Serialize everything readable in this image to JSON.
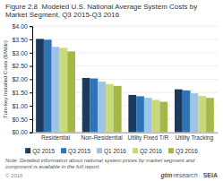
{
  "chart_data": {
    "type": "bar",
    "title": "Figure 2.8  Modeled U.S. National Average System Costs by Market Segment, Q3 2015-Q3 2016",
    "ylabel": "Turn-key Installed Costs ($/Wdc)",
    "categories": [
      "Residential",
      "Non-Residential",
      "Utility Fixed T/R",
      "Utility Tracking"
    ],
    "series": [
      {
        "name": "Q2 2015",
        "color": "#1b3a5e",
        "values": [
          3.52,
          2.05,
          1.41,
          1.62
        ]
      },
      {
        "name": "Q3 2015",
        "color": "#2e75b6",
        "values": [
          3.49,
          2.03,
          1.36,
          1.58
        ]
      },
      {
        "name": "Q1 2016",
        "color": "#9dc3e6",
        "values": [
          3.22,
          1.91,
          1.3,
          1.47
        ]
      },
      {
        "name": "Q2 2016",
        "color": "#c9d87a",
        "values": [
          3.18,
          1.82,
          1.22,
          1.37
        ]
      },
      {
        "name": "Q3 2016",
        "color": "#a4b84a",
        "values": [
          3.05,
          1.75,
          1.15,
          1.3
        ]
      }
    ],
    "ylim": [
      0,
      4
    ],
    "yticks": [
      {
        "value": 0,
        "label": "$0.00"
      },
      {
        "value": 0.5,
        "label": "$0.50"
      },
      {
        "value": 1,
        "label": "$1.00"
      },
      {
        "value": 1.5,
        "label": "$1.50"
      },
      {
        "value": 2,
        "label": "$2.00"
      },
      {
        "value": 2.5,
        "label": "$2.50"
      },
      {
        "value": 3,
        "label": "$3.00"
      },
      {
        "value": 3.5,
        "label": "$3.50"
      },
      {
        "value": 4,
        "label": "$4.00"
      }
    ],
    "grid": true,
    "legend": "bottom",
    "annotations": [
      "Note: Detailed information about national system prices by market segment and component is available in the full report.",
      "© 2016",
      "gtm",
      "research",
      "SEIA"
    ]
  }
}
